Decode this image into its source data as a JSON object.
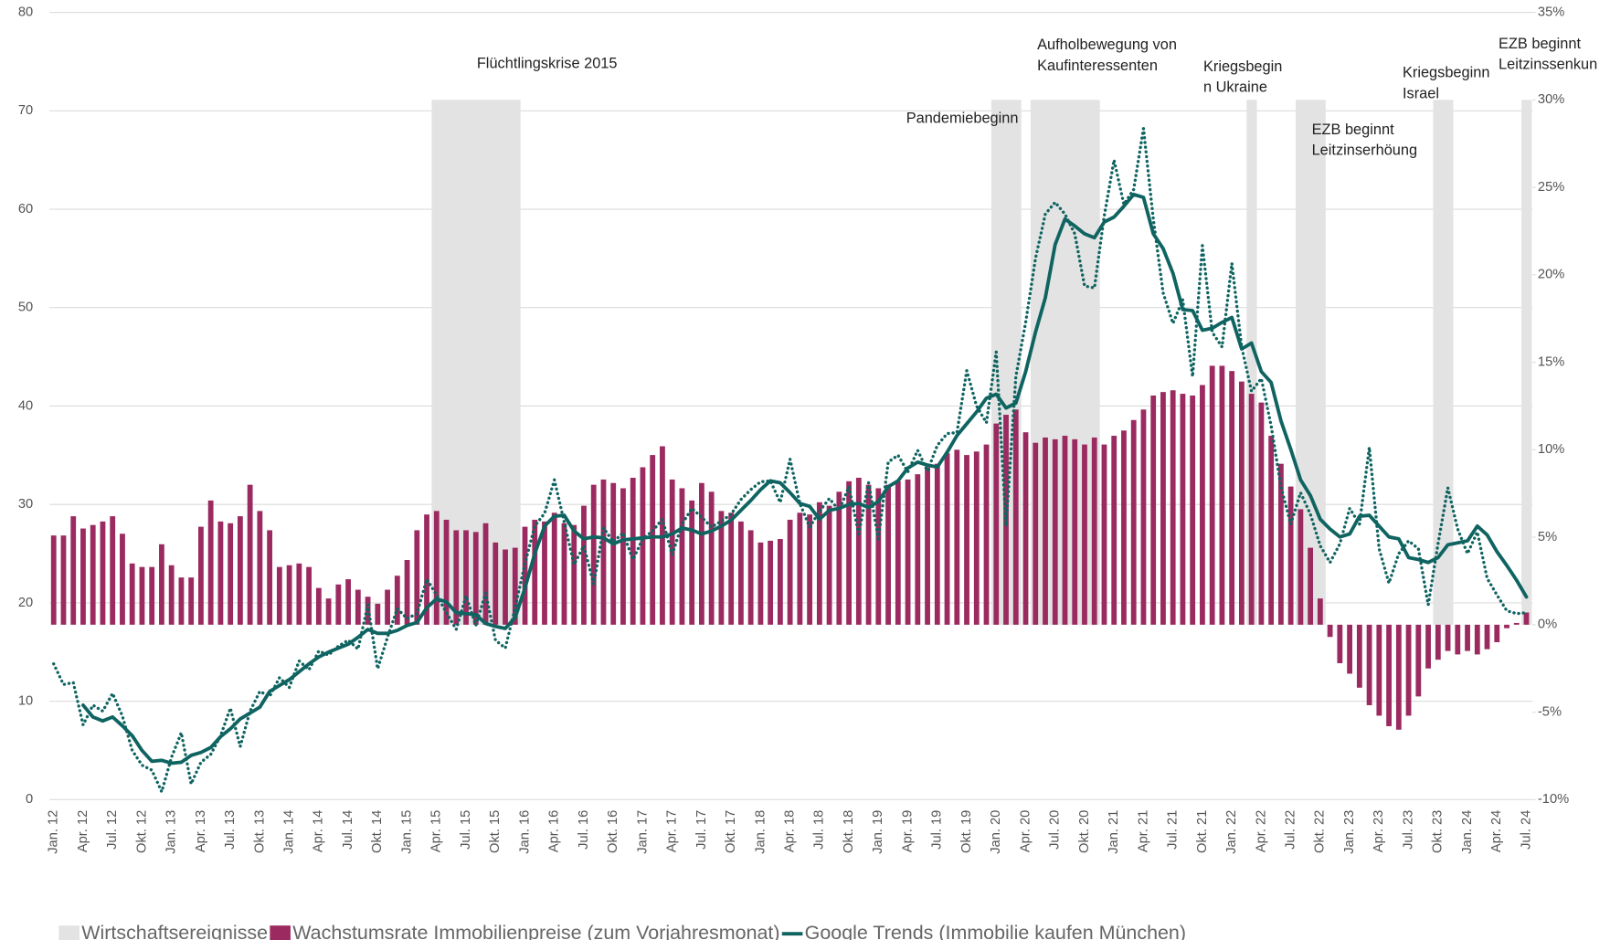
{
  "chart_data": {
    "type": "bar",
    "categories": [
      "Jan. 12",
      null,
      null,
      "Apr. 12",
      null,
      null,
      "Jul. 12",
      null,
      null,
      "Okt. 12",
      null,
      null,
      "Jan. 13",
      null,
      null,
      "Apr. 13",
      null,
      null,
      "Jul. 13",
      null,
      null,
      "Okt. 13",
      null,
      null,
      "Jan. 14",
      null,
      null,
      "Apr. 14",
      null,
      null,
      "Jul. 14",
      null,
      null,
      "Okt. 14",
      null,
      null,
      "Jan. 15",
      null,
      null,
      "Apr. 15",
      null,
      null,
      "Jul. 15",
      null,
      null,
      "Okt. 15",
      null,
      null,
      "Jan. 16",
      null,
      null,
      "Apr. 16",
      null,
      null,
      "Jul. 16",
      null,
      null,
      "Okt. 16",
      null,
      null,
      "Jan. 17",
      null,
      null,
      "Apr. 17",
      null,
      null,
      "Jul. 17",
      null,
      null,
      "Okt. 17",
      null,
      null,
      "Jan. 18",
      null,
      null,
      "Apr. 18",
      null,
      null,
      "Jul. 18",
      null,
      null,
      "Okt. 18",
      null,
      null,
      "Jan. 19",
      null,
      null,
      "Apr. 19",
      null,
      null,
      "Jul. 19",
      null,
      null,
      "Okt. 19",
      null,
      null,
      "Jan. 20",
      null,
      null,
      "Apr. 20",
      null,
      null,
      "Jul. 20",
      null,
      null,
      "Okt. 20",
      null,
      null,
      "Jan. 21",
      null,
      null,
      "Apr. 21",
      null,
      null,
      "Jul. 21",
      null,
      null,
      "Okt. 21",
      null,
      null,
      "Jan. 22",
      null,
      null,
      "Apr. 22",
      null,
      null,
      "Jul. 22",
      null,
      null,
      "Okt. 22",
      null,
      null,
      "Jan. 23",
      null,
      null,
      "Apr. 23",
      null,
      null,
      "Jul. 23",
      null,
      null,
      "Okt. 23",
      null,
      null,
      "Jan. 24",
      null,
      null,
      "Apr. 24",
      null,
      null,
      "Jul. 24"
    ],
    "series": [
      {
        "name": "Wirtschaftsereignisse",
        "type": "band",
        "axis": "y2",
        "color": "#e3e3e3",
        "values": [
          null,
          null,
          null,
          null,
          null,
          null,
          null,
          null,
          null,
          null,
          null,
          null,
          null,
          null,
          null,
          null,
          null,
          null,
          null,
          null,
          null,
          null,
          null,
          null,
          null,
          null,
          null,
          null,
          null,
          null,
          null,
          null,
          null,
          null,
          null,
          null,
          null,
          null,
          null,
          30,
          30,
          30,
          30,
          30,
          30,
          30,
          30,
          30,
          null,
          null,
          null,
          null,
          null,
          null,
          null,
          null,
          null,
          null,
          null,
          null,
          null,
          null,
          null,
          null,
          null,
          null,
          null,
          null,
          null,
          null,
          null,
          null,
          null,
          null,
          null,
          null,
          null,
          null,
          null,
          null,
          null,
          null,
          null,
          null,
          null,
          null,
          null,
          null,
          null,
          null,
          null,
          null,
          null,
          null,
          null,
          null,
          30,
          30,
          30,
          null,
          30,
          30,
          30,
          30,
          30,
          30,
          30,
          null,
          null,
          null,
          null,
          null,
          null,
          null,
          null,
          null,
          null,
          null,
          null,
          null,
          null,
          null,
          30,
          null,
          null,
          null,
          null,
          30,
          30,
          30,
          null,
          null,
          null,
          null,
          null,
          null,
          null,
          null,
          null,
          null,
          null,
          30,
          30,
          null,
          null,
          null,
          null,
          null,
          null,
          null,
          30
        ]
      },
      {
        "name": "Wachstumsrate Immobilienpreise (zum Vorjahresmonat)",
        "type": "bar",
        "axis": "y2",
        "color": "#9b2a60",
        "values": [
          5.1,
          5.1,
          6.2,
          5.5,
          5.7,
          5.9,
          6.2,
          5.2,
          3.5,
          3.3,
          3.3,
          4.6,
          3.4,
          2.7,
          2.7,
          5.6,
          7.1,
          5.9,
          5.8,
          6.2,
          8.0,
          6.5,
          5.4,
          3.3,
          3.4,
          3.5,
          3.3,
          2.1,
          1.5,
          2.3,
          2.6,
          2.0,
          1.6,
          1.2,
          2.0,
          2.8,
          3.7,
          5.4,
          6.3,
          6.5,
          6.0,
          5.4,
          5.4,
          5.3,
          5.8,
          4.7,
          4.3,
          4.4,
          5.6,
          6.0,
          5.9,
          6.4,
          5.8,
          5.7,
          6.8,
          8.0,
          8.3,
          8.1,
          7.8,
          8.4,
          9.0,
          9.7,
          10.2,
          8.3,
          7.8,
          7.1,
          8.1,
          7.6,
          6.5,
          6.4,
          5.9,
          5.4,
          4.7,
          4.8,
          4.9,
          6.0,
          6.4,
          6.3,
          7.0,
          6.8,
          7.6,
          8.2,
          8.4,
          8.0,
          7.8,
          8.0,
          8.2,
          8.3,
          8.6,
          9.0,
          9.2,
          9.8,
          10.0,
          9.7,
          9.9,
          10.3,
          11.5,
          12.0,
          12.3,
          11.0,
          10.4,
          10.7,
          10.6,
          10.8,
          10.6,
          10.3,
          10.7,
          10.3,
          10.8,
          11.1,
          11.7,
          12.3,
          13.1,
          13.3,
          13.4,
          13.2,
          13.1,
          13.7,
          14.8,
          14.8,
          14.5,
          13.9,
          13.2,
          12.7,
          10.8,
          9.2,
          7.9,
          6.6,
          4.4,
          1.5,
          -0.7,
          -2.2,
          -2.8,
          -3.6,
          -4.6,
          -5.2,
          -5.8,
          -6.0,
          -5.2,
          -4.1,
          -2.5,
          -2.0,
          -1.5,
          -1.7,
          -1.5,
          -1.7,
          -1.4,
          -1.0,
          -0.2,
          0.1,
          0.7
        ]
      },
      {
        "name": "Google Trends (Immobilie kaufen München)",
        "type": "line",
        "color": "#0f6461",
        "values": [
          null,
          null,
          null,
          9.6,
          8.4,
          8.0,
          8.4,
          7.5,
          6.5,
          5.0,
          3.9,
          4.0,
          3.7,
          3.8,
          4.5,
          4.8,
          5.3,
          6.4,
          7.2,
          8.2,
          8.8,
          9.4,
          11.0,
          11.6,
          12.2,
          13.0,
          13.8,
          14.5,
          15.0,
          15.4,
          15.8,
          16.5,
          17.3,
          16.9,
          16.9,
          17.2,
          17.7,
          18.0,
          19.5,
          20.4,
          20.1,
          19.0,
          18.9,
          18.8,
          17.9,
          17.6,
          17.4,
          18.5,
          21.5,
          25.0,
          27.8,
          28.8,
          28.9,
          27.3,
          26.5,
          26.7,
          26.6,
          26.0,
          26.4,
          26.5,
          26.6,
          26.7,
          26.7,
          27.0,
          27.6,
          27.4,
          27.0,
          27.3,
          27.8,
          28.4,
          29.4,
          30.4,
          31.5,
          32.4,
          32.2,
          31.2,
          30.1,
          29.8,
          28.5,
          29.4,
          29.6,
          30.0,
          30.1,
          29.7,
          30.3,
          31.8,
          32.4,
          33.7,
          34.3,
          34.0,
          33.8,
          35.3,
          37.0,
          38.2,
          39.4,
          40.8,
          41.2,
          39.8,
          40.3,
          43.5,
          47.5,
          51.0,
          56.4,
          59.0,
          58.3,
          57.5,
          57.1,
          58.7,
          59.2,
          60.3,
          61.5,
          61.2,
          57.5,
          56.0,
          53.5,
          49.8,
          49.7,
          47.7,
          47.9,
          48.5,
          49.0,
          45.8,
          46.4,
          43.5,
          42.4,
          38.5,
          35.6,
          32.5,
          30.9,
          28.5,
          27.5,
          26.7,
          27.0,
          28.8,
          28.9,
          27.8,
          26.7,
          26.5,
          24.6,
          24.4,
          24.1,
          24.6,
          25.9,
          26.1,
          26.3,
          27.8,
          26.9,
          25.2,
          23.8,
          22.3,
          20.6
        ]
      },
      {
        "type": "line",
        "dash": "dotted",
        "color": "#0f6461",
        "values": [
          13.8,
          11.7,
          11.9,
          7.6,
          9.6,
          9.0,
          10.8,
          8.5,
          5.0,
          3.5,
          3.0,
          0.8,
          4.3,
          6.8,
          1.6,
          3.8,
          4.6,
          6.5,
          9.3,
          5.4,
          9.0,
          11.0,
          10.5,
          12.4,
          11.4,
          14.1,
          13.2,
          15.1,
          14.7,
          15.6,
          16.2,
          15.3,
          19.8,
          13.3,
          16.5,
          19.4,
          18.4,
          18.9,
          22.4,
          20.8,
          19.0,
          17.3,
          20.7,
          17.7,
          21.0,
          16.2,
          15.4,
          19.5,
          24.0,
          27.8,
          29.1,
          32.5,
          28.2,
          23.9,
          25.8,
          21.9,
          27.6,
          26.2,
          27.1,
          24.4,
          26.5,
          27.3,
          28.5,
          24.9,
          28.0,
          29.6,
          28.7,
          27.7,
          28.3,
          29.0,
          30.5,
          31.5,
          32.3,
          32.4,
          30.2,
          34.6,
          30.1,
          27.7,
          29.3,
          30.6,
          29.4,
          31.8,
          27.0,
          32.2,
          26.5,
          34.3,
          35.0,
          33.3,
          35.5,
          33.4,
          36.0,
          37.2,
          37.3,
          43.6,
          40.0,
          38.3,
          45.5,
          27.8,
          43.0,
          48.5,
          55.0,
          59.5,
          60.7,
          59.5,
          57.5,
          52.2,
          52.0,
          59.3,
          65.0,
          60.5,
          62.0,
          68.2,
          59.0,
          51.5,
          48.4,
          50.8,
          43.0,
          56.3,
          47.5,
          46.0,
          54.5,
          46.0,
          41.5,
          42.8,
          38.0,
          31.8,
          28.0,
          31.2,
          29.0,
          25.8,
          24.1,
          26.0,
          29.6,
          28.0,
          35.8,
          25.5,
          22.0,
          25.0,
          26.3,
          25.5,
          19.8,
          26.0,
          31.7,
          27.5,
          25.0,
          27.2,
          22.5,
          20.8,
          19.2,
          18.9,
          19.0
        ]
      }
    ],
    "ylim": [
      0,
      80
    ],
    "yticks": [
      0,
      10,
      20,
      30,
      40,
      50,
      60,
      70,
      80
    ],
    "y2lim": [
      -10,
      35
    ],
    "y2ticks": [
      {
        "value": -10,
        "label": "-10%"
      },
      {
        "value": -5,
        "label": "-5%"
      },
      {
        "value": 0,
        "label": "0%"
      },
      {
        "value": 5,
        "label": "5%"
      },
      {
        "value": 10,
        "label": "10%"
      },
      {
        "value": 15,
        "label": "15%"
      },
      {
        "value": 20,
        "label": "20%"
      },
      {
        "value": 25,
        "label": "25%"
      },
      {
        "value": 30,
        "label": "30%"
      },
      {
        "value": 35,
        "label": "35%"
      }
    ],
    "grid": true,
    "legend": "bottom",
    "annotations": [
      [
        "Flüchtlingskrise 2015"
      ],
      [
        "Pandemiebeginn"
      ],
      [
        "Aufholbewegung von",
        "Kaufinteressenten"
      ],
      [
        "Kriegsbegin",
        "n Ukraine"
      ],
      [
        "EZB beginnt",
        "Leitzinserhöung"
      ],
      [
        "Kriegsbeginn",
        "Israel"
      ],
      [
        "EZB beginnt",
        "Leitzinssenkun"
      ]
    ]
  }
}
